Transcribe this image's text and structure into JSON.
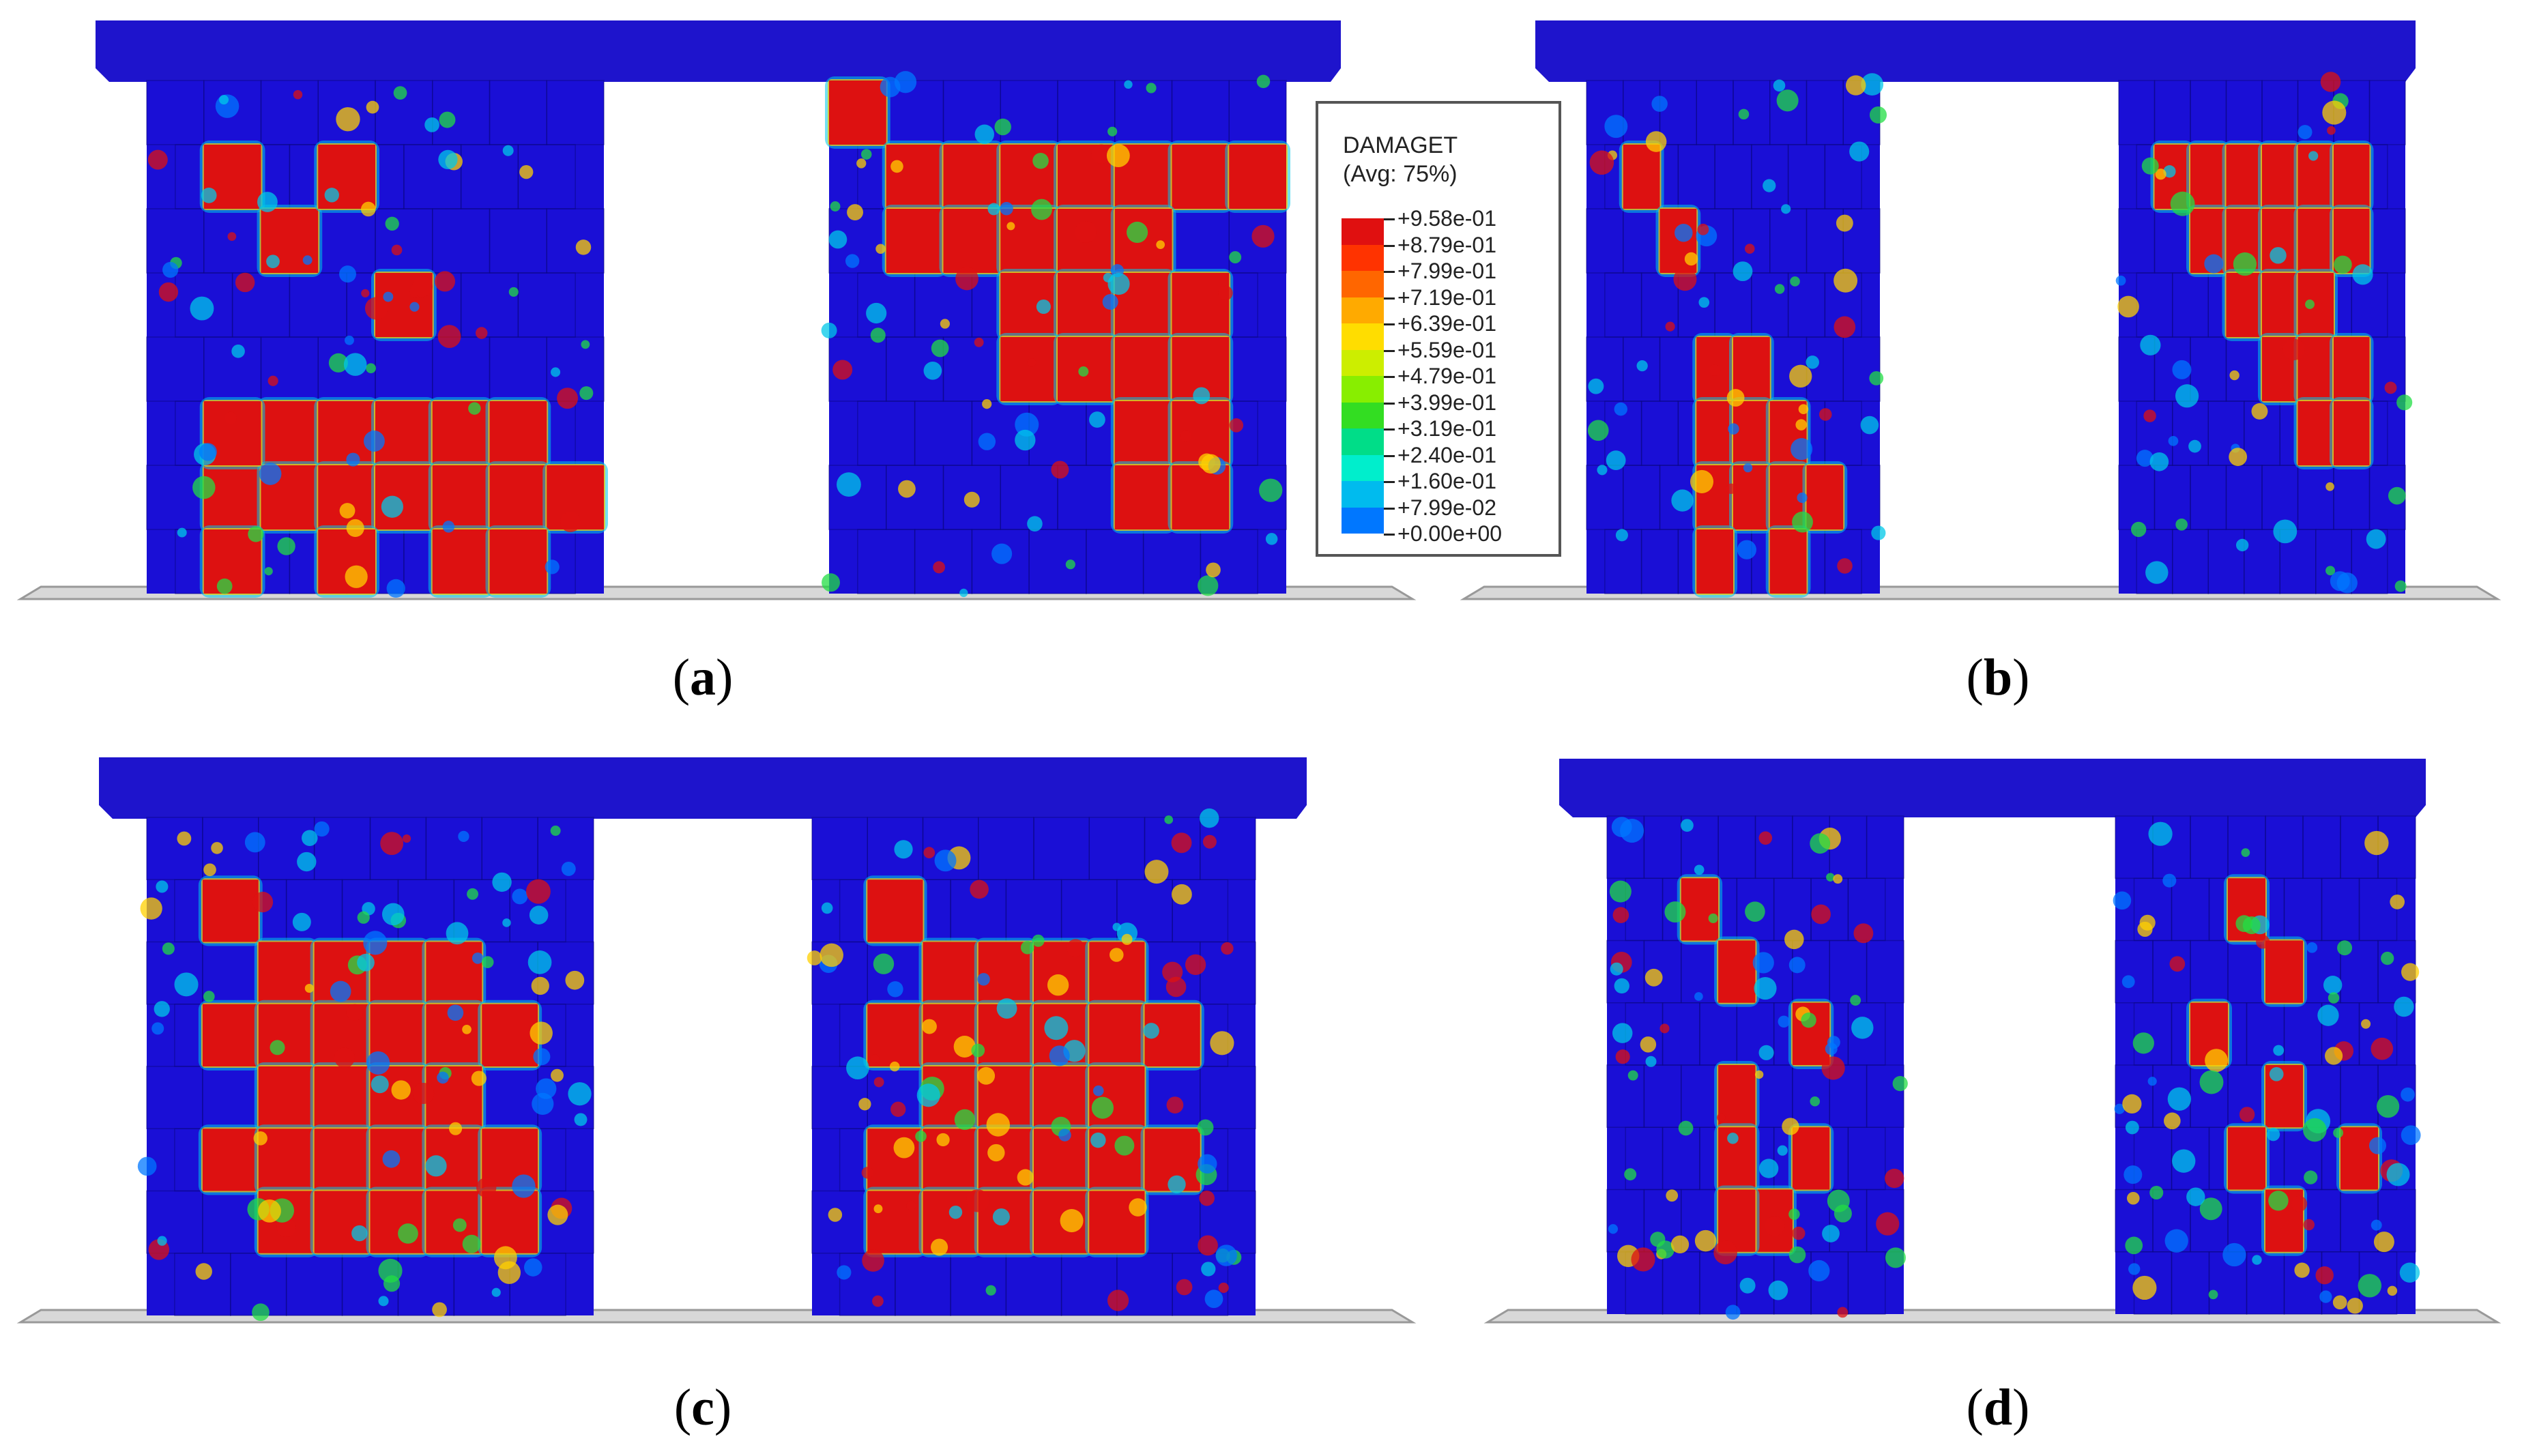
{
  "legend": {
    "title": "DAMAGET",
    "subtitle": "(Avg: 75%)",
    "levels": [
      "+9.58e-01",
      "+8.79e-01",
      "+7.99e-01",
      "+7.19e-01",
      "+6.39e-01",
      "+5.59e-01",
      "+4.79e-01",
      "+3.99e-01",
      "+3.19e-01",
      "+2.40e-01",
      "+1.60e-01",
      "+7.99e-02",
      "+0.00e+00"
    ],
    "colors": [
      "#e01010",
      "#ff3300",
      "#ff6600",
      "#ffaa00",
      "#ffdd00",
      "#ccee00",
      "#88ee00",
      "#33dd22",
      "#00dd88",
      "#00eecc",
      "#00bbee",
      "#0077ff",
      "#0000cc"
    ]
  },
  "panels": [
    {
      "label": "a"
    },
    {
      "label": "b"
    },
    {
      "label": "c"
    },
    {
      "label": "d"
    }
  ],
  "colors": {
    "base": "#1a0fd6",
    "beam": "#1e14cc",
    "damage": "#dd1111",
    "ground": "#d8d8d8"
  }
}
